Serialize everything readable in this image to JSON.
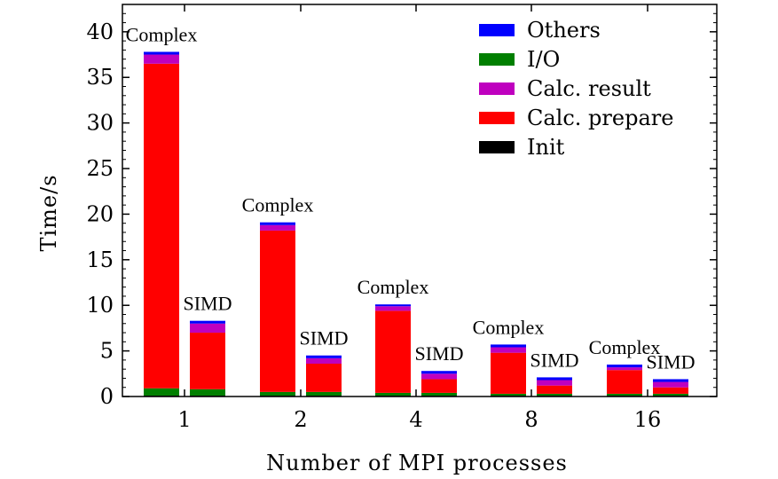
{
  "chart_data": {
    "type": "bar",
    "stacked": true,
    "title": "",
    "xlabel": "Number of MPI processes",
    "ylabel": "Time/s",
    "ylim": [
      0,
      43
    ],
    "yticks": [
      0,
      5,
      10,
      15,
      20,
      25,
      30,
      35,
      40
    ],
    "categories": [
      "1",
      "2",
      "4",
      "8",
      "16"
    ],
    "variants": [
      "Complex",
      "SIMD"
    ],
    "legend_position": "top-right",
    "series": [
      {
        "name": "Init",
        "color": "#000000",
        "values": {
          "Complex": [
            0.1,
            0.1,
            0.1,
            0.1,
            0.1
          ],
          "SIMD": [
            0.1,
            0.1,
            0.1,
            0.1,
            0.1
          ]
        }
      },
      {
        "name": "I/O",
        "color": "#007f00",
        "values": {
          "Complex": [
            0.8,
            0.4,
            0.3,
            0.2,
            0.2
          ],
          "SIMD": [
            0.7,
            0.4,
            0.3,
            0.2,
            0.2
          ]
        }
      },
      {
        "name": "Calc. prepare",
        "color": "#ff0000",
        "values": {
          "Complex": [
            35.6,
            17.7,
            9.0,
            4.5,
            2.6
          ],
          "SIMD": [
            6.2,
            3.1,
            1.5,
            0.9,
            0.7
          ]
        }
      },
      {
        "name": "Calc. result",
        "color": "#bf00bf",
        "values": {
          "Complex": [
            1.0,
            0.6,
            0.5,
            0.6,
            0.3
          ],
          "SIMD": [
            1.0,
            0.6,
            0.6,
            0.6,
            0.6
          ]
        }
      },
      {
        "name": "Others",
        "color": "#0000ff",
        "values": {
          "Complex": [
            0.3,
            0.3,
            0.2,
            0.3,
            0.3
          ],
          "SIMD": [
            0.3,
            0.3,
            0.3,
            0.3,
            0.3
          ]
        }
      }
    ],
    "legend_order": [
      "Others",
      "I/O",
      "Calc. result",
      "Calc. prepare",
      "Init"
    ]
  }
}
